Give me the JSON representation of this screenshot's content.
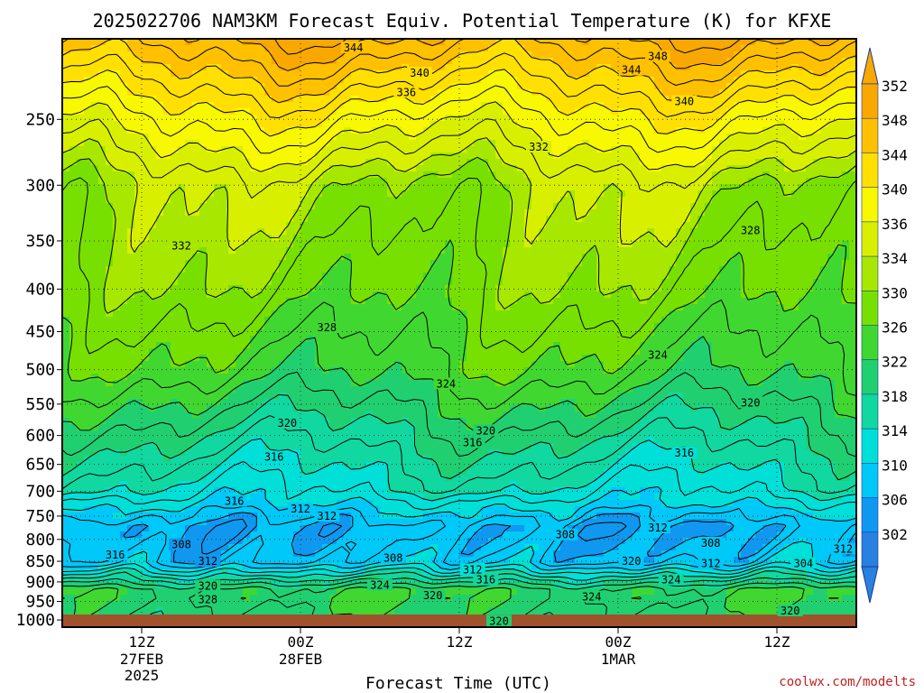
{
  "title": "2025022706 NAM3KM Forecast Equiv. Potential Temperature (K) for KFXE",
  "watermark": "coolwx.com/modelts",
  "chart_data": {
    "type": "heatmap",
    "title": "2025022706 NAM3KM Forecast Equiv. Potential Temperature (K) for KFXE",
    "xlabel": "Forecast Time (UTC)",
    "ylabel": "",
    "y_scale": "log-pressure (inverted)",
    "y_ticks": [
      250,
      300,
      350,
      400,
      450,
      500,
      550,
      600,
      650,
      700,
      750,
      800,
      850,
      900,
      950,
      1000
    ],
    "x_ticks": [
      {
        "label": "12Z",
        "sub1": "27FEB",
        "sub2": "2025"
      },
      {
        "label": "00Z",
        "sub1": "28FEB",
        "sub2": ""
      },
      {
        "label": "12Z",
        "sub1": "",
        "sub2": ""
      },
      {
        "label": "00Z",
        "sub1": "1MAR",
        "sub2": ""
      },
      {
        "label": "12Z",
        "sub1": "",
        "sub2": ""
      }
    ],
    "x_tick_hours": [
      6,
      18,
      30,
      42,
      54
    ],
    "x_range_hours": [
      0,
      60
    ],
    "y_range_hpa": [
      200,
      1020
    ],
    "grid": true,
    "colorbar": {
      "labels": [
        352,
        348,
        344,
        340,
        336,
        334,
        330,
        326,
        322,
        318,
        314,
        310,
        306,
        302
      ],
      "colors": [
        "#f8a800",
        "#ffc000",
        "#ffe000",
        "#f8f800",
        "#d8f000",
        "#a8e800",
        "#78e000",
        "#40d830",
        "#20d070",
        "#10d8a0",
        "#00e0d8",
        "#00c8f8",
        "#1098f0",
        "#2880e0"
      ]
    },
    "profile_points": [
      {
        "p": 200,
        "theta": 350
      },
      {
        "p": 250,
        "theta": 340
      },
      {
        "p": 300,
        "theta": 333
      },
      {
        "p": 400,
        "theta": 330
      },
      {
        "p": 500,
        "theta": 326
      },
      {
        "p": 600,
        "theta": 320
      },
      {
        "p": 700,
        "theta": 315
      },
      {
        "p": 775,
        "theta": 308
      },
      {
        "p": 850,
        "theta": 310
      },
      {
        "p": 925,
        "theta": 324
      },
      {
        "p": 1000,
        "theta": 322
      }
    ],
    "contour_labels": [
      {
        "text": "344",
        "h": 22,
        "p": 205
      },
      {
        "text": "348",
        "h": 45,
        "p": 210
      },
      {
        "text": "340",
        "h": 27,
        "p": 220
      },
      {
        "text": "344",
        "h": 43,
        "p": 218
      },
      {
        "text": "336",
        "h": 26,
        "p": 232
      },
      {
        "text": "340",
        "h": 47,
        "p": 238
      },
      {
        "text": "332",
        "h": 36,
        "p": 270
      },
      {
        "text": "328",
        "h": 52,
        "p": 340
      },
      {
        "text": "332",
        "h": 9,
        "p": 355
      },
      {
        "text": "328",
        "h": 20,
        "p": 445
      },
      {
        "text": "324",
        "h": 45,
        "p": 480
      },
      {
        "text": "324",
        "h": 29,
        "p": 520
      },
      {
        "text": "320",
        "h": 52,
        "p": 548
      },
      {
        "text": "320",
        "h": 17,
        "p": 580
      },
      {
        "text": "320",
        "h": 32,
        "p": 592
      },
      {
        "text": "316",
        "h": 31,
        "p": 612
      },
      {
        "text": "316",
        "h": 16,
        "p": 637
      },
      {
        "text": "316",
        "h": 47,
        "p": 630
      },
      {
        "text": "316",
        "h": 13,
        "p": 720
      },
      {
        "text": "312",
        "h": 18,
        "p": 735
      },
      {
        "text": "312",
        "h": 20,
        "p": 750
      },
      {
        "text": "312",
        "h": 45,
        "p": 775
      },
      {
        "text": "308",
        "h": 38,
        "p": 790
      },
      {
        "text": "308",
        "h": 49,
        "p": 808
      },
      {
        "text": "308",
        "h": 9,
        "p": 812
      },
      {
        "text": "308",
        "h": 25,
        "p": 842
      },
      {
        "text": "316",
        "h": 4,
        "p": 835
      },
      {
        "text": "312",
        "h": 11,
        "p": 850
      },
      {
        "text": "320",
        "h": 43,
        "p": 850
      },
      {
        "text": "312",
        "h": 49,
        "p": 855
      },
      {
        "text": "304",
        "h": 56,
        "p": 855
      },
      {
        "text": "312",
        "h": 59,
        "p": 822
      },
      {
        "text": "312",
        "h": 31,
        "p": 870
      },
      {
        "text": "316",
        "h": 32,
        "p": 895
      },
      {
        "text": "324",
        "h": 24,
        "p": 908
      },
      {
        "text": "324",
        "h": 46,
        "p": 895
      },
      {
        "text": "320",
        "h": 11,
        "p": 910
      },
      {
        "text": "320",
        "h": 28,
        "p": 935
      },
      {
        "text": "324",
        "h": 40,
        "p": 938
      },
      {
        "text": "328",
        "h": 11,
        "p": 945
      },
      {
        "text": "320",
        "h": 55,
        "p": 975
      },
      {
        "text": "320",
        "h": 33,
        "p": 1003
      }
    ]
  }
}
